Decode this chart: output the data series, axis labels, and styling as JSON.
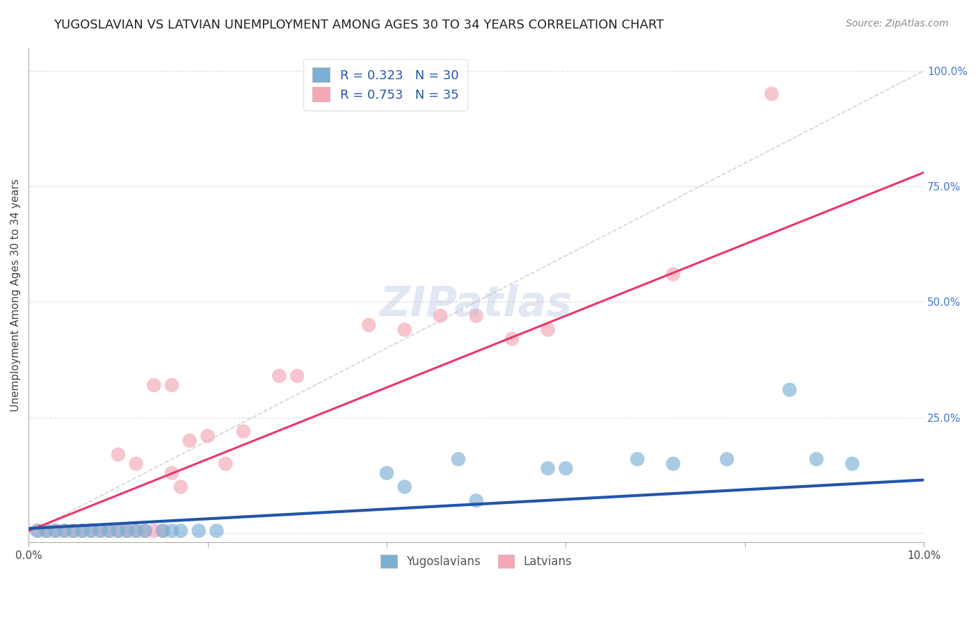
{
  "title": "YUGOSLAVIAN VS LATVIAN UNEMPLOYMENT AMONG AGES 30 TO 34 YEARS CORRELATION CHART",
  "source_text": "Source: ZipAtlas.com",
  "ylabel": "Unemployment Among Ages 30 to 34 years",
  "xlim": [
    0.0,
    0.1
  ],
  "ylim": [
    -0.02,
    1.05
  ],
  "yticks": [
    0.0,
    0.25,
    0.5,
    0.75,
    1.0
  ],
  "ytick_labels": [
    "",
    "25.0%",
    "50.0%",
    "75.0%",
    "100.0%"
  ],
  "xticks": [
    0.0,
    0.02,
    0.04,
    0.06,
    0.08,
    0.1
  ],
  "xtick_labels": [
    "0.0%",
    "",
    "",
    "",
    "",
    "10.0%"
  ],
  "legend_blue_label": "R = 0.323   N = 30",
  "legend_pink_label": "R = 0.753   N = 35",
  "legend2_blue": "Yugoslavians",
  "legend2_pink": "Latvians",
  "title_color": "#222222",
  "title_fontsize": 13,
  "source_fontsize": 10,
  "axis_label_fontsize": 11,
  "tick_label_fontsize": 11,
  "blue_color": "#7BAFD4",
  "pink_color": "#F4A7B5",
  "blue_line_color": "#2255AA",
  "pink_line_color": "#EE3366",
  "ref_line_color": "#C8C8C8",
  "grid_color": "#DDDDDD",
  "background_color": "#FFFFFF",
  "blue_scatter_x": [
    0.001,
    0.002,
    0.003,
    0.004,
    0.005,
    0.006,
    0.007,
    0.008,
    0.009,
    0.01,
    0.011,
    0.012,
    0.013,
    0.015,
    0.016,
    0.017,
    0.019,
    0.021,
    0.04,
    0.042,
    0.048,
    0.05,
    0.058,
    0.06,
    0.068,
    0.072,
    0.078,
    0.085,
    0.088,
    0.092
  ],
  "blue_scatter_y": [
    0.005,
    0.005,
    0.005,
    0.005,
    0.005,
    0.005,
    0.005,
    0.005,
    0.005,
    0.005,
    0.005,
    0.005,
    0.005,
    0.005,
    0.005,
    0.005,
    0.005,
    0.005,
    0.13,
    0.1,
    0.16,
    0.07,
    0.14,
    0.14,
    0.16,
    0.15,
    0.16,
    0.31,
    0.16,
    0.15
  ],
  "pink_scatter_x": [
    0.001,
    0.002,
    0.003,
    0.004,
    0.005,
    0.006,
    0.007,
    0.008,
    0.009,
    0.01,
    0.011,
    0.012,
    0.013,
    0.014,
    0.015,
    0.016,
    0.017,
    0.01,
    0.012,
    0.014,
    0.016,
    0.018,
    0.02,
    0.022,
    0.024,
    0.028,
    0.03,
    0.038,
    0.042,
    0.046,
    0.05,
    0.054,
    0.058,
    0.072,
    0.083
  ],
  "pink_scatter_y": [
    0.005,
    0.005,
    0.005,
    0.005,
    0.005,
    0.005,
    0.005,
    0.005,
    0.005,
    0.005,
    0.005,
    0.005,
    0.005,
    0.005,
    0.005,
    0.13,
    0.1,
    0.17,
    0.15,
    0.32,
    0.32,
    0.2,
    0.21,
    0.15,
    0.22,
    0.34,
    0.34,
    0.45,
    0.44,
    0.47,
    0.47,
    0.42,
    0.44,
    0.56,
    0.95
  ],
  "blue_trend_x": [
    0.0,
    0.1
  ],
  "blue_trend_y": [
    0.01,
    0.115
  ],
  "pink_trend_x": [
    0.0,
    0.1
  ],
  "pink_trend_y": [
    0.005,
    0.78
  ],
  "ref_line_x": [
    0.0,
    0.1
  ],
  "ref_line_y": [
    0.0,
    1.0
  ]
}
